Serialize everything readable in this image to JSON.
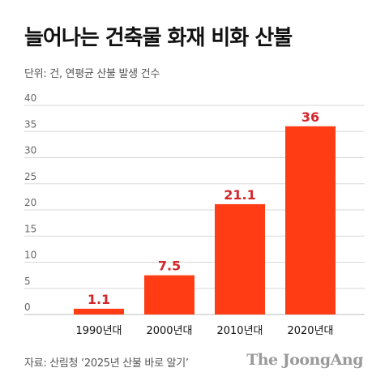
{
  "title": "늘어나는 건축물 화재 비화 산불",
  "unit_note": "단위: 건, 연평균 산불 발생 건수",
  "source": "자료: 산림청 ‘2025년 산불 바로 알기’",
  "logo": "The JoongAng",
  "colors": {
    "bar": "#ff3c14",
    "value_label": "#d3262a",
    "grid": "#d9d9d9"
  },
  "chart_data": {
    "type": "bar",
    "title": "늘어나는 건축물 화재 비화 산불",
    "xlabel": "",
    "ylabel": "",
    "categories": [
      "1990년대",
      "2000년대",
      "2010년대",
      "2020년대"
    ],
    "values": [
      1.1,
      7.5,
      21.1,
      36
    ],
    "value_labels": [
      "1.1",
      "7.5",
      "21.1",
      "36"
    ],
    "ylim": [
      0,
      40
    ],
    "yticks": [
      0,
      5,
      10,
      15,
      20,
      25,
      30,
      35,
      40
    ],
    "grid": true,
    "legend": "none"
  }
}
